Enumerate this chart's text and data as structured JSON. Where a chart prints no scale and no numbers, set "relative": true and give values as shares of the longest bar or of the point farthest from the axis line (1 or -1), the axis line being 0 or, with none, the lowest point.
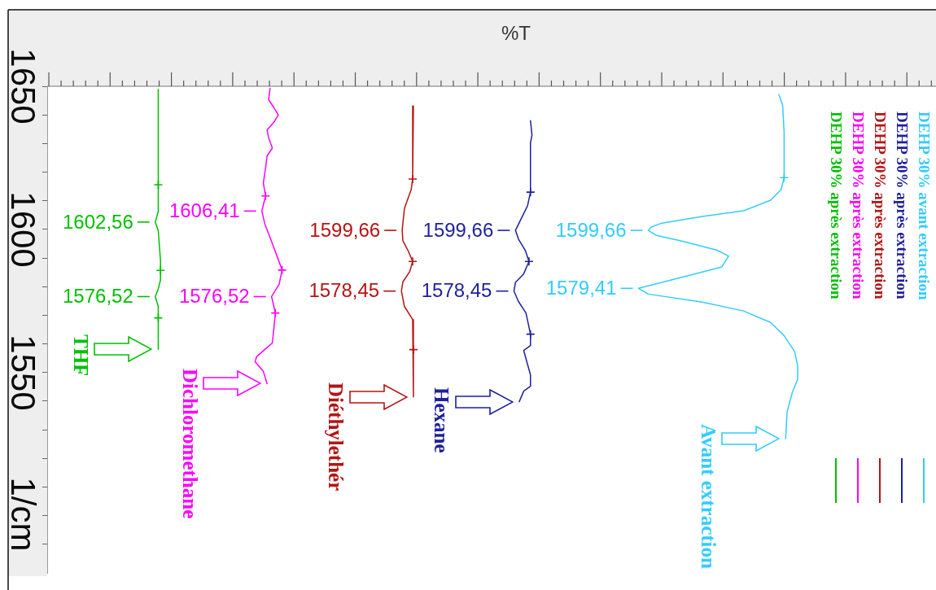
{
  "chart_data": {
    "type": "line",
    "orientation": "horizontal",
    "relative": true,
    "xlabel": "%T",
    "ylabel": "1/cm",
    "ylim": [
      1480,
      1650
    ],
    "yticks": [
      {
        "value": 1490,
        "label": null
      },
      {
        "value": 1500,
        "label": null
      },
      {
        "value": 1510,
        "label": null
      },
      {
        "value": 1520,
        "label": null
      },
      {
        "value": 1530,
        "label": null
      },
      {
        "value": 1540,
        "label": null
      },
      1550,
      {
        "value": 1560,
        "label": null
      },
      {
        "value": 1570,
        "label": null
      },
      {
        "value": 1580,
        "label": null
      },
      {
        "value": 1590,
        "label": null
      },
      1600,
      {
        "value": 1610,
        "label": null
      },
      {
        "value": 1620,
        "label": null
      },
      {
        "value": 1630,
        "label": null
      },
      {
        "value": 1640,
        "label": null
      },
      1650
    ],
    "legend": "right",
    "series": [
      {
        "name": "DEHP 30% avant extraction",
        "color": "#33ccff",
        "x": [
          1647.1,
          1643.4,
          1633.8,
          1618.1,
          1613.9,
          1610.2,
          1606.5,
          1604.5,
          1602.2,
          1600.8,
          1599.66,
          1597.9,
          1595.8,
          1592.8,
          1590.7,
          1586.9,
          1583.9,
          1580.3,
          1579.41,
          1577.4,
          1574.6,
          1571.5,
          1567.5,
          1562.9,
          1557.3,
          1552.4,
          1547.6,
          1543.1,
          1536.3,
          1526.9
        ],
        "values": [
          0.975,
          0.98,
          0.982,
          0.982,
          0.978,
          0.964,
          0.928,
          0.873,
          0.819,
          0.805,
          0.801,
          0.812,
          0.848,
          0.892,
          0.908,
          0.899,
          0.855,
          0.801,
          0.788,
          0.801,
          0.873,
          0.928,
          0.964,
          0.982,
          0.996,
          1,
          1,
          0.993,
          0.986,
          0.984
        ]
      },
      {
        "name": "DEHP 30% après extraction",
        "color": "#1f1f9f",
        "x": [
          1638.0,
          1632.9,
          1630.3,
          1617.6,
          1613.0,
          1608.2,
          1603.4,
          1599.66,
          1596.6,
          1592.7,
          1588.8,
          1584.5,
          1581.5,
          1578.45,
          1574.8,
          1570.8,
          1563.4,
          1559.4,
          1557.7,
          1552.9,
          1549.2,
          1545.2,
          1543.5,
          1539.8
        ],
        "values": [
          0.644,
          0.646,
          0.644,
          0.644,
          0.644,
          0.64,
          0.631,
          0.624,
          0.628,
          0.637,
          0.642,
          0.635,
          0.624,
          0.622,
          0.628,
          0.638,
          0.644,
          0.644,
          0.635,
          0.64,
          0.644,
          0.644,
          0.635,
          0.629
        ]
      },
      {
        "name": "DEHP 30% après extraction",
        "color": "#b41414",
        "x": [
          1643.1,
          1617.6,
          1613.9,
          1607.3,
          1599.66,
          1596.0,
          1592.5,
          1588.8,
          1585.2,
          1581.7,
          1578.45,
          1573.1,
          1568.5,
          1558.0,
          1550.6,
          1541.5
        ],
        "values": [
          0.488,
          0.487,
          0.485,
          0.476,
          0.473,
          0.474,
          0.481,
          0.487,
          0.483,
          0.474,
          0.472,
          0.476,
          0.487,
          0.488,
          0.488,
          0.488
        ]
      },
      {
        "name": "DEHP 30% après extraction",
        "color": "#ff00ff",
        "x": [
          1649.3,
          1645.3,
          1642.6,
          1640.0,
          1637.4,
          1634.7,
          1632.1,
          1628.4,
          1625.7,
          1621.5,
          1616.2,
          1611.7,
          1606.41,
          1601.9,
          1595.8,
          1588.7,
          1585.8,
          1580.8,
          1576.52,
          1570.8,
          1565.2,
          1560.3,
          1558.3,
          1555.5,
          1553.8,
          1550.4,
          1546.1
        ],
        "values": [
          0.297,
          0.295,
          0.302,
          0.308,
          0.302,
          0.293,
          0.295,
          0.3,
          0.293,
          0.291,
          0.288,
          0.291,
          0.286,
          0.29,
          0.299,
          0.309,
          0.313,
          0.309,
          0.299,
          0.304,
          0.302,
          0.3,
          0.291,
          0.279,
          0.277,
          0.288,
          0.293
        ]
      },
      {
        "name": "DEHP 30% après extraction",
        "color": "#00c000",
        "x": [
          1648.9,
          1615.6,
          1606.3,
          1602.56,
          1599.6,
          1589.0,
          1585.7,
          1582.4,
          1579.2,
          1576.52,
          1573.1,
          1569.1,
          1558.1
        ],
        "values": [
          0.148,
          0.148,
          0.148,
          0.144,
          0.148,
          0.151,
          0.151,
          0.151,
          0.148,
          0.144,
          0.148,
          0.148,
          0.148
        ]
      },
      {
        "type": "scatter",
        "marker": "cross",
        "color": "#33ccff",
        "x": [
          1618.1
        ],
        "values": [
          0.982
        ]
      },
      {
        "type": "scatter",
        "marker": "cross",
        "color": "#1f1f9f",
        "x": [
          1613.0,
          1588.8,
          1563.4
        ],
        "values": [
          0.644,
          0.642,
          0.644
        ]
      },
      {
        "type": "scatter",
        "marker": "cross",
        "color": "#b41414",
        "x": [
          1617.6,
          1588.8,
          1558.0
        ],
        "values": [
          0.487,
          0.487,
          0.488
        ]
      },
      {
        "type": "scatter",
        "marker": "cross",
        "color": "#ff00ff",
        "x": [
          1611.7,
          1585.8,
          1570.8
        ],
        "values": [
          0.291,
          0.313,
          0.304
        ]
      },
      {
        "type": "scatter",
        "marker": "cross",
        "color": "#00c000",
        "x": [
          1615.6,
          1585.7,
          1569.1
        ],
        "values": [
          0.148,
          0.151,
          0.148
        ]
      }
    ],
    "annotations": [
      "Avant extraction",
      "Hexane",
      "Diéthylethér",
      "Dichloromethane",
      "THF",
      {
        "text": "1599,66",
        "x": 0.801,
        "y": 1599.66
      },
      {
        "text": "1579,41",
        "x": 0.788,
        "y": 1579.41
      },
      {
        "text": "1599,66",
        "x": 0.624,
        "y": 1599.66
      },
      {
        "text": "1578,45",
        "x": 0.622,
        "y": 1578.45
      },
      {
        "text": "1599,66",
        "x": 0.473,
        "y": 1599.66
      },
      {
        "text": "1578,45",
        "x": 0.472,
        "y": 1578.45
      },
      {
        "text": "1606,41",
        "x": 0.286,
        "y": 1606.41
      },
      {
        "text": "1576,52",
        "x": 0.299,
        "y": 1576.52
      },
      {
        "text": "1602,56",
        "x": 0.144,
        "y": 1602.56
      },
      {
        "text": "1576,52",
        "x": 0.144,
        "y": 1576.52
      }
    ]
  }
}
